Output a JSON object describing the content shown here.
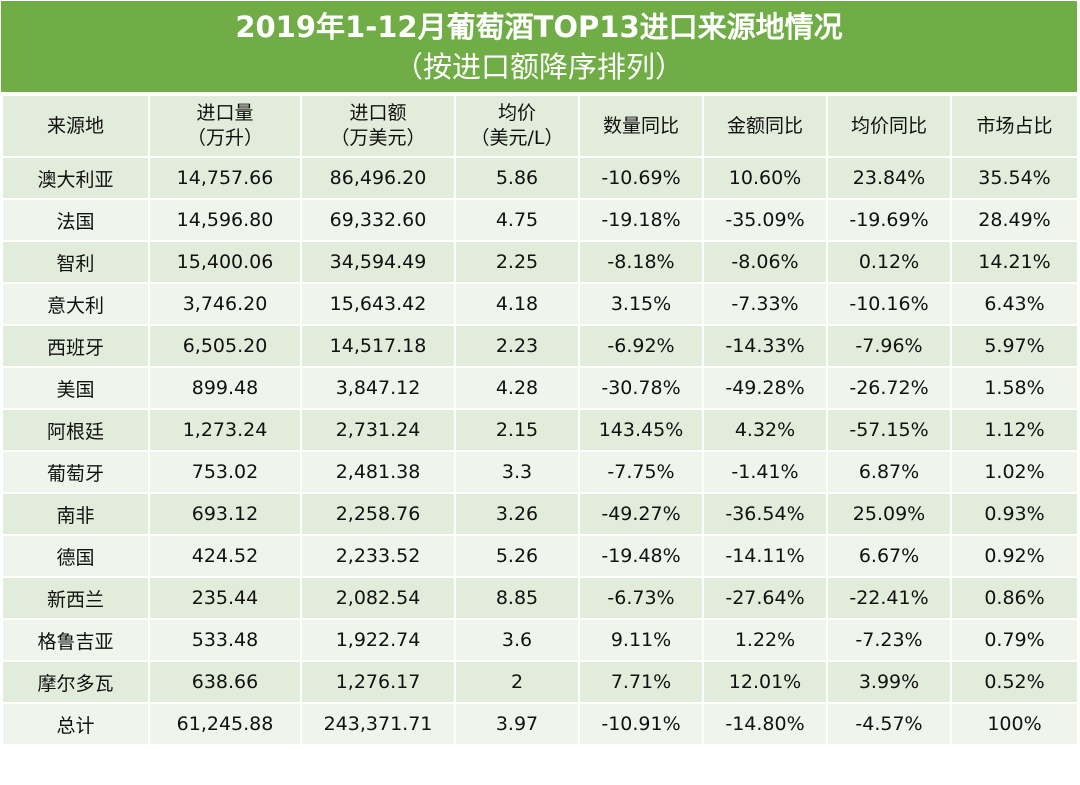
{
  "chart_data": {
    "type": "table",
    "title": "2019年1-12月葡萄酒TOP13进口来源地情况",
    "subtitle": "（按进口额降序排列）",
    "columns": [
      {
        "line1": "来源地",
        "line2": ""
      },
      {
        "line1": "进口量",
        "line2": "（万升）"
      },
      {
        "line1": "进口额",
        "line2": "（万美元）"
      },
      {
        "line1": "均价",
        "line2": "（美元/L）"
      },
      {
        "line1": "数量同比",
        "line2": ""
      },
      {
        "line1": "金额同比",
        "line2": ""
      },
      {
        "line1": "均价同比",
        "line2": ""
      },
      {
        "line1": "市场占比",
        "line2": ""
      }
    ],
    "rows": [
      [
        "澳大利亚",
        "14,757.66",
        "86,496.20",
        "5.86",
        "-10.69%",
        "10.60%",
        "23.84%",
        "35.54%"
      ],
      [
        "法国",
        "14,596.80",
        "69,332.60",
        "4.75",
        "-19.18%",
        "-35.09%",
        "-19.69%",
        "28.49%"
      ],
      [
        "智利",
        "15,400.06",
        "34,594.49",
        "2.25",
        "-8.18%",
        "-8.06%",
        "0.12%",
        "14.21%"
      ],
      [
        "意大利",
        "3,746.20",
        "15,643.42",
        "4.18",
        "3.15%",
        "-7.33%",
        "-10.16%",
        "6.43%"
      ],
      [
        "西班牙",
        "6,505.20",
        "14,517.18",
        "2.23",
        "-6.92%",
        "-14.33%",
        "-7.96%",
        "5.97%"
      ],
      [
        "美国",
        "899.48",
        "3,847.12",
        "4.28",
        "-30.78%",
        "-49.28%",
        "-26.72%",
        "1.58%"
      ],
      [
        "阿根廷",
        "1,273.24",
        "2,731.24",
        "2.15",
        "143.45%",
        "4.32%",
        "-57.15%",
        "1.12%"
      ],
      [
        "葡萄牙",
        "753.02",
        "2,481.38",
        "3.3",
        "-7.75%",
        "-1.41%",
        "6.87%",
        "1.02%"
      ],
      [
        "南非",
        "693.12",
        "2,258.76",
        "3.26",
        "-49.27%",
        "-36.54%",
        "25.09%",
        "0.93%"
      ],
      [
        "德国",
        "424.52",
        "2,233.52",
        "5.26",
        "-19.48%",
        "-14.11%",
        "6.67%",
        "0.92%"
      ],
      [
        "新西兰",
        "235.44",
        "2,082.54",
        "8.85",
        "-6.73%",
        "-27.64%",
        "-22.41%",
        "0.86%"
      ],
      [
        "格鲁吉亚",
        "533.48",
        "1,922.74",
        "3.6",
        "9.11%",
        "1.22%",
        "-7.23%",
        "0.79%"
      ],
      [
        "摩尔多瓦",
        "638.66",
        "1,276.17",
        "2",
        "7.71%",
        "12.01%",
        "3.99%",
        "0.52%"
      ],
      [
        "总计",
        "61,245.88",
        "243,371.71",
        "3.97",
        "-10.91%",
        "-14.80%",
        "-4.57%",
        "100%"
      ]
    ]
  },
  "colors": {
    "header_green": "#70ad47",
    "row_dark": "#e2ecdb",
    "row_light": "#eff5ec"
  }
}
